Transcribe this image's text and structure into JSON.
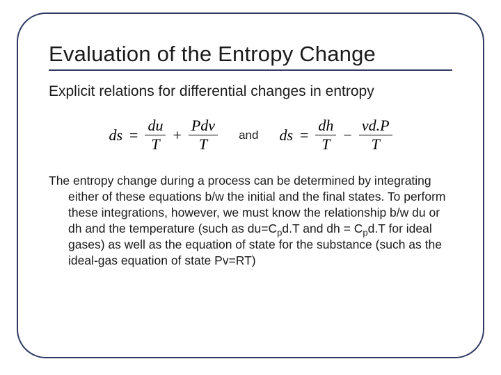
{
  "slide": {
    "background_color": "#ffffff",
    "frame_border_color": "#2f3b63",
    "frame_border_width": 2,
    "frame_border_radius": 42
  },
  "title": {
    "text": "Evaluation of the Entropy Change",
    "fontsize": 31,
    "underline_color": "#2f3b63"
  },
  "subtitle": {
    "text": "Explicit relations for differential changes in entropy",
    "fontsize": 21
  },
  "equations": {
    "eq1": {
      "lhs": "ds",
      "eq": "=",
      "term1_num": "du",
      "term1_den": "T",
      "op": "+",
      "term2_num": "Pdv",
      "term2_den": "T"
    },
    "conj": "and",
    "eq2": {
      "lhs": "ds",
      "eq": "=",
      "term1_num": "dh",
      "term1_den": "T",
      "op": "−",
      "term2_num": "vd.P",
      "term2_den": "T"
    },
    "fontsize": 22,
    "font_family": "Times New Roman"
  },
  "body": {
    "text_pre": "The entropy change during a process can be determined by integrating either of these equations b/w the initial and the final states. To perform these integrations, however, we must know the relationship b/w du or dh and the temperature (such as du=C",
    "sub1": "p",
    "text_mid": "d.T and dh = C",
    "sub2": "p",
    "text_post": "d.T for ideal gases) as well as the equation of state for the substance (such as the ideal-gas equation of state Pv=RT)",
    "fontsize": 17.5
  }
}
